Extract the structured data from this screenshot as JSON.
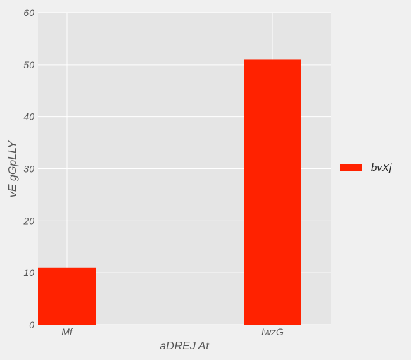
{
  "chart_data": {
    "type": "bar",
    "categories": [
      "Mf",
      "IwzG"
    ],
    "series": [
      {
        "name": "bvXj",
        "values": [
          11,
          51
        ],
        "color": "#ff2200"
      }
    ],
    "xlabel": "aDREJ At",
    "ylabel": "vE  gGpLLY",
    "ylim": [
      0,
      60
    ],
    "yticks": [
      0,
      10,
      20,
      30,
      40,
      50,
      60
    ],
    "grid": true,
    "legend_position": "right",
    "plot_background": "#e5e5e5",
    "figure_background": "#f0f0f0",
    "grid_color": "#ffffff"
  }
}
